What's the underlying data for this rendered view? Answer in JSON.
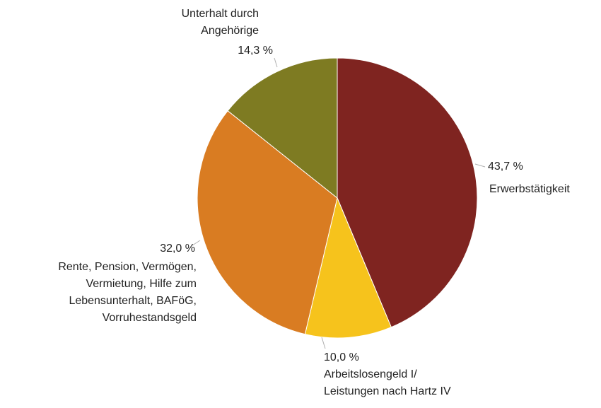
{
  "chart_data": {
    "type": "pie",
    "categories": [
      "Erwerbstätigkeit",
      "Arbeitslosengeld I/\nLeistungen nach Hartz IV",
      "Rente, Pension, Vermögen,\nVermietung, Hilfe zum\nLebensunterhalt, BAFöG,\nVorruhestandsgeld",
      "Unterhalt durch\nAngehörige"
    ],
    "values": [
      43.7,
      10.0,
      32.0,
      14.3
    ],
    "value_labels": [
      "43,7 %",
      "10,0 %",
      "32,0 %",
      "14,3 %"
    ],
    "colors": [
      "#7f2420",
      "#f6c31c",
      "#d97c22",
      "#7e7b22"
    ]
  }
}
